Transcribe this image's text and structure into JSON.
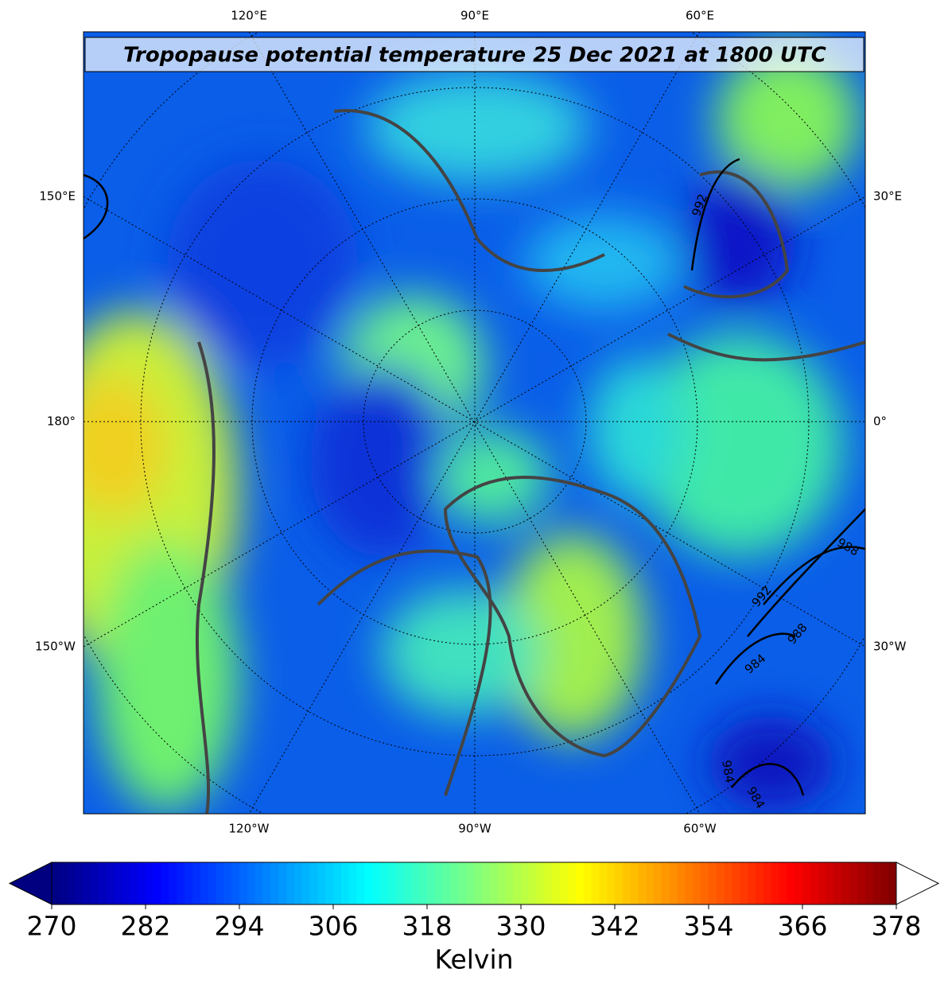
{
  "title": "Tropopause potential temperature 25 Dec 2021 at 1800 UTC",
  "map": {
    "lon_labels_top": [
      "120°E",
      "90°E",
      "60°E"
    ],
    "lon_labels_left": [
      "150°E",
      "180°",
      "150°W"
    ],
    "lon_labels_right": [
      "30°E",
      "0°",
      "30°W"
    ],
    "lon_labels_bottom": [
      "120°W",
      "90°W",
      "60°W"
    ],
    "pressure_contour_labels": [
      992,
      988,
      992,
      988,
      984,
      984,
      984
    ]
  },
  "colorbar": {
    "label": "Kelvin",
    "colormap": "jet",
    "lim": [
      270,
      378
    ],
    "step": 1,
    "ticks": [
      270,
      282,
      294,
      306,
      318,
      330,
      342,
      354,
      366,
      378
    ],
    "extend": "both"
  }
}
